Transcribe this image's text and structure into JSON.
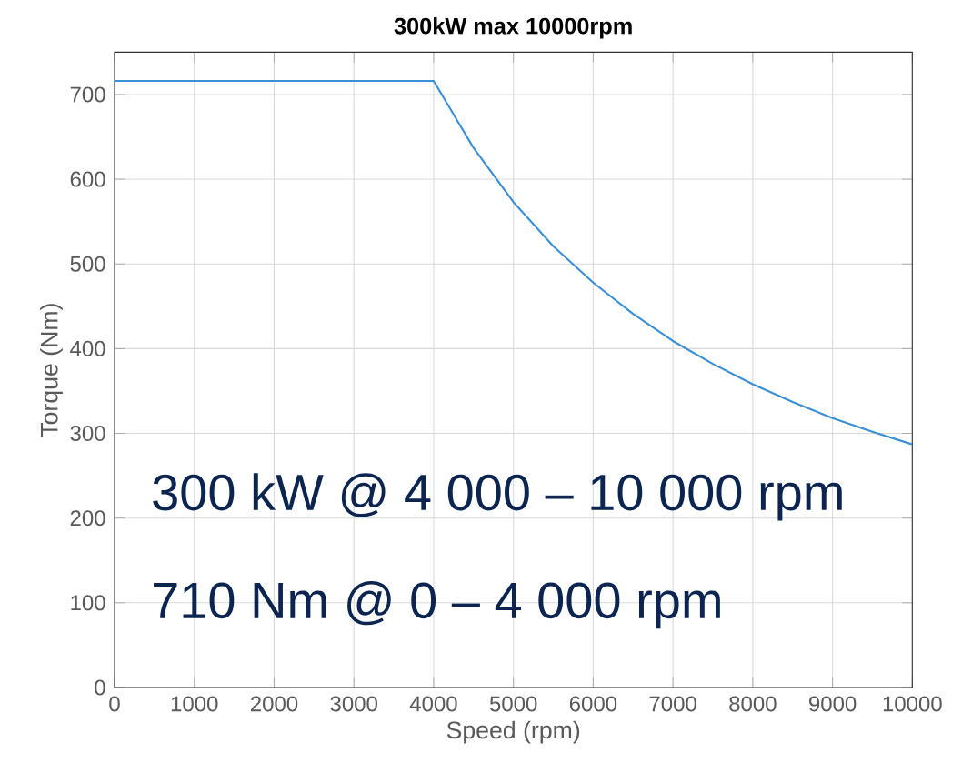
{
  "chart_data": {
    "type": "line",
    "title": "300kW max 10000rpm",
    "xlabel": "Speed (rpm)",
    "ylabel": "Torque (Nm)",
    "x": [
      0,
      4000,
      4500,
      5000,
      5500,
      6000,
      6500,
      7000,
      7500,
      8000,
      8500,
      9000,
      9500,
      10000
    ],
    "series": [
      {
        "color": "#3a8fd6",
        "values": [
          716,
          716,
          637,
          573,
          521,
          478,
          441,
          409,
          382,
          358,
          337,
          318,
          302,
          287
        ]
      }
    ],
    "xlim": [
      0,
      10000
    ],
    "xticks": [
      0,
      1000,
      2000,
      3000,
      4000,
      5000,
      6000,
      7000,
      8000,
      9000,
      10000
    ],
    "ylim": [
      0,
      750
    ],
    "yticks": [
      0,
      100,
      200,
      300,
      400,
      500,
      600,
      700
    ],
    "grid": true,
    "legend": false,
    "marker": "none",
    "line_style": "solid",
    "annotations": [
      "300 kW @ 4 000 – 10 000 rpm",
      "710 Nm @ 0 – 4 000 rpm"
    ]
  }
}
